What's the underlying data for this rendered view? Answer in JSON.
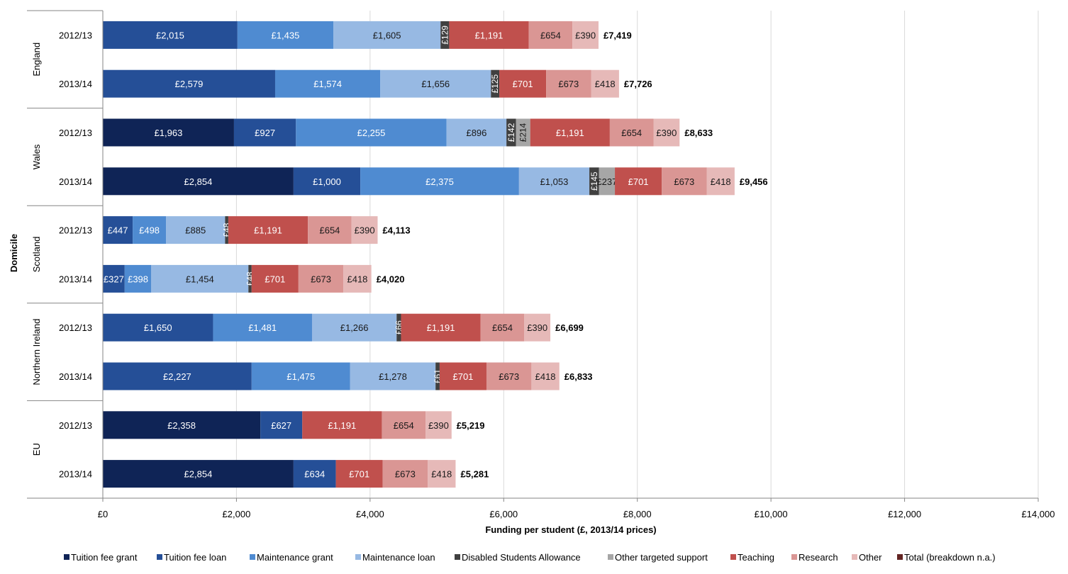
{
  "chart_data": {
    "type": "bar",
    "orientation": "horizontal",
    "stacked": true,
    "title": "",
    "xlabel": "Funding per student (£, 2013/14 prices)",
    "ylabel": "Domicile",
    "xlim": [
      0,
      14000
    ],
    "xticks": [
      0,
      2000,
      4000,
      6000,
      8000,
      10000,
      12000,
      14000
    ],
    "xtick_labels": [
      "£0",
      "£2,000",
      "£4,000",
      "£6,000",
      "£8,000",
      "£10,000",
      "£12,000",
      "£14,000"
    ],
    "grid": true,
    "legend_position": "bottom",
    "groups": [
      {
        "name": "England",
        "rows": [
          0,
          1
        ]
      },
      {
        "name": "Wales",
        "rows": [
          2,
          3
        ]
      },
      {
        "name": "Scotland",
        "rows": [
          4,
          5
        ]
      },
      {
        "name": "Northern Ireland",
        "rows": [
          6,
          7
        ]
      },
      {
        "name": "EU",
        "rows": [
          8,
          9
        ]
      }
    ],
    "categories": [
      "2012/13",
      "2013/14",
      "2012/13",
      "2013/14",
      "2012/13",
      "2013/14",
      "2012/13",
      "2013/14",
      "2012/13",
      "2013/14"
    ],
    "series": [
      {
        "name": "Tuition fee grant",
        "color": "#0f2456",
        "values": [
          0,
          0,
          1963,
          2854,
          0,
          0,
          0,
          0,
          2358,
          2854
        ],
        "labels": [
          "",
          "",
          "£1,963",
          "£2,854",
          "",
          "",
          "",
          "",
          "£2,358",
          "£2,854"
        ]
      },
      {
        "name": "Tuition fee loan",
        "color": "#254f97",
        "values": [
          2015,
          2579,
          927,
          1000,
          447,
          327,
          1650,
          2227,
          627,
          634
        ],
        "labels": [
          "£2,015",
          "£2,579",
          "£927",
          "£1,000",
          "£447",
          "£327",
          "£1,650",
          "£2,227",
          "£627",
          "£634"
        ]
      },
      {
        "name": "Maintenance grant",
        "color": "#4f8bd1",
        "values": [
          1435,
          1574,
          2255,
          2375,
          498,
          398,
          1481,
          1475,
          0,
          0
        ],
        "labels": [
          "£1,435",
          "£1,574",
          "£2,255",
          "£2,375",
          "£498",
          "£398",
          "£1,481",
          "£1,475",
          "",
          ""
        ]
      },
      {
        "name": "Maintenance loan",
        "color": "#97b9e3",
        "values": [
          1605,
          1656,
          896,
          1053,
          885,
          1454,
          1266,
          1278,
          0,
          0
        ],
        "labels": [
          "£1,605",
          "£1,656",
          "£896",
          "£1,053",
          "£885",
          "£1,454",
          "£1,266",
          "£1,278",
          "",
          ""
        ]
      },
      {
        "name": "Disabled Students Allowance",
        "color": "#404040",
        "values": [
          129,
          125,
          142,
          145,
          48,
          48,
          66,
          61,
          0,
          0
        ],
        "labels": [
          "£129",
          "£125",
          "£142",
          "£145",
          "£48",
          "£48",
          "£66",
          "£61",
          "",
          ""
        ]
      },
      {
        "name": "Other targeted support",
        "color": "#a6a6a6",
        "values": [
          0,
          0,
          214,
          237,
          0,
          0,
          0,
          0,
          0,
          0
        ],
        "labels": [
          "",
          "",
          "£214",
          "£237",
          "",
          "",
          "",
          "",
          "",
          ""
        ]
      },
      {
        "name": "Teaching",
        "color": "#c0504d",
        "values": [
          1191,
          701,
          1191,
          701,
          1191,
          701,
          1191,
          701,
          1191,
          701
        ],
        "labels": [
          "£1,191",
          "£701",
          "£1,191",
          "£701",
          "£1,191",
          "£701",
          "£1,191",
          "£701",
          "£1,191",
          "£701"
        ]
      },
      {
        "name": "Research",
        "color": "#da9694",
        "values": [
          654,
          673,
          654,
          673,
          654,
          673,
          654,
          673,
          654,
          673
        ],
        "labels": [
          "£654",
          "£673",
          "£654",
          "£673",
          "£654",
          "£673",
          "£654",
          "£673",
          "£654",
          "£673"
        ]
      },
      {
        "name": "Other",
        "color": "#e6b9b8",
        "values": [
          390,
          418,
          390,
          418,
          390,
          418,
          390,
          418,
          390,
          418
        ],
        "labels": [
          "£390",
          "£418",
          "£390",
          "£418",
          "£390",
          "£418",
          "£390",
          "£418",
          "£390",
          "£418"
        ]
      },
      {
        "name": "Total (breakdown n.a.)",
        "color": "#632523",
        "values": [
          0,
          0,
          0,
          0,
          0,
          0,
          0,
          0,
          0,
          0
        ],
        "labels": [
          "",
          "",
          "",
          "",
          "",
          "",
          "",
          "",
          "",
          ""
        ]
      }
    ],
    "totals": [
      7419,
      7726,
      8633,
      9456,
      4113,
      4020,
      6699,
      6833,
      5219,
      5281
    ],
    "total_labels": [
      "£7,419",
      "£7,726",
      "£8,633",
      "£9,456",
      "£4,113",
      "£4,020",
      "£6,699",
      "£6,833",
      "£5,219",
      "£5,281"
    ]
  }
}
